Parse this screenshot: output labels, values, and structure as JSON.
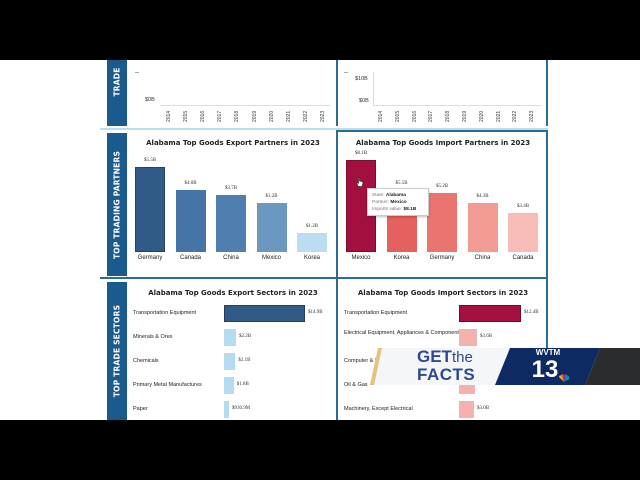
{
  "row_labels": {
    "top": "TRADE",
    "partners": "TOP TRADING PARTNERS",
    "sectors": "TOP TRADE SECTORS"
  },
  "colors": {
    "band": "#1b5a8c",
    "export_dark": "#2f5b86",
    "import_dark": "#a3103f",
    "border": "#2a6c94"
  },
  "tooltip": {
    "state_label": "State:",
    "state_value": "Alabama",
    "partner_label": "Partner:",
    "partner_value": "Mexico",
    "value_label": "Imports value:",
    "value_value": "$8.1B"
  },
  "cursor_icon": "hand-pointer-icon",
  "overlay": {
    "line1a": "GET",
    "line1b": "the",
    "line2": "FACTS",
    "station": "WVTM",
    "channel": "13",
    "network_icon": "peacock-icon"
  },
  "chart_data": [
    {
      "type": "line",
      "title": "",
      "x": [
        "2014",
        "2015",
        "2016",
        "2017",
        "2018",
        "2019",
        "2020",
        "2021",
        "2022",
        "2023"
      ],
      "yticks": [
        "$0B"
      ],
      "series": [],
      "note": "partially visible; only bottom of axis shown"
    },
    {
      "type": "line",
      "title": "",
      "x": [
        "2014",
        "2015",
        "2016",
        "2017",
        "2018",
        "2019",
        "2020",
        "2021",
        "2022",
        "2023"
      ],
      "yticks": [
        "$0B",
        "$10B"
      ],
      "series": [],
      "note": "partially visible; only bottom of axis shown"
    },
    {
      "type": "bar",
      "title": "Alabama Top Goods Export Partners in 2023",
      "categories": [
        "Germany",
        "Canada",
        "China",
        "Mexico",
        "Korea"
      ],
      "values": [
        5.5,
        4.0,
        3.7,
        3.2,
        1.2
      ],
      "labels": [
        "$5.5B",
        "$4.0B",
        "$3.7B",
        "$3.2B",
        "$1.2B"
      ],
      "colors": [
        "#2f5b86",
        "#4575a6",
        "#4f7fae",
        "#6a98c1",
        "#bcdcef"
      ],
      "ylim": [
        0,
        5.5
      ],
      "units": "billion USD"
    },
    {
      "type": "bar",
      "title": "Alabama Top Goods Import Partners in 2023",
      "categories": [
        "Mexico",
        "Korea",
        "Germany",
        "China",
        "Canada"
      ],
      "values": [
        8.1,
        5.5,
        5.2,
        4.3,
        3.4
      ],
      "labels": [
        "$8.1B",
        "$5.5B",
        "$5.2B",
        "$4.3B",
        "$3.4B"
      ],
      "colors": [
        "#a3103f",
        "#e5615f",
        "#ea7570",
        "#f19b93",
        "#f6bcb5"
      ],
      "ylim": [
        0,
        8.1
      ],
      "units": "billion USD"
    },
    {
      "type": "bar",
      "orientation": "horizontal",
      "title": "Alabama Top Goods Export Sectors in 2023",
      "categories": [
        "Transportation Equipment",
        "Minerals & Ores",
        "Chemicals",
        "Primary Metal Manufactures",
        "Paper"
      ],
      "values": [
        14.9,
        2.2,
        2.1,
        1.8,
        0.9309
      ],
      "labels": [
        "$14.9B",
        "$2.2B",
        "$2.1B",
        "$1.8B",
        "$930.9M"
      ],
      "colors": [
        "#2f5b86",
        "#b5dbee",
        "#b5dbee",
        "#b5dbee",
        "#b5dbee"
      ],
      "xlim": [
        0,
        14.9
      ],
      "units": "billion USD"
    },
    {
      "type": "bar",
      "orientation": "horizontal",
      "title": "Alabama Top Goods Import Sectors in 2023",
      "categories": [
        "Transportation Equipment",
        "Electrical Equipment, Appliances & Components",
        "Computer & Electronic Products",
        "Oil & Gas",
        "Machinery, Except Electrical"
      ],
      "category_visible": [
        "Transportation Equipment",
        "Electrical Equipment, Appliances & Components",
        "Computer & Ele",
        "Oil & Gas",
        "Machinery, Except Electrical"
      ],
      "values": [
        12.4,
        3.6,
        3.3,
        3.1,
        3.0
      ],
      "labels": [
        "$12.4B",
        "$3.6B",
        "",
        "",
        "$3.0B"
      ],
      "colors": [
        "#a3103f",
        "#f5b1ad",
        "#f5b1ad",
        "#f5b1ad",
        "#f5b1ad"
      ],
      "xlim": [
        0,
        12.4
      ],
      "units": "billion USD"
    }
  ]
}
